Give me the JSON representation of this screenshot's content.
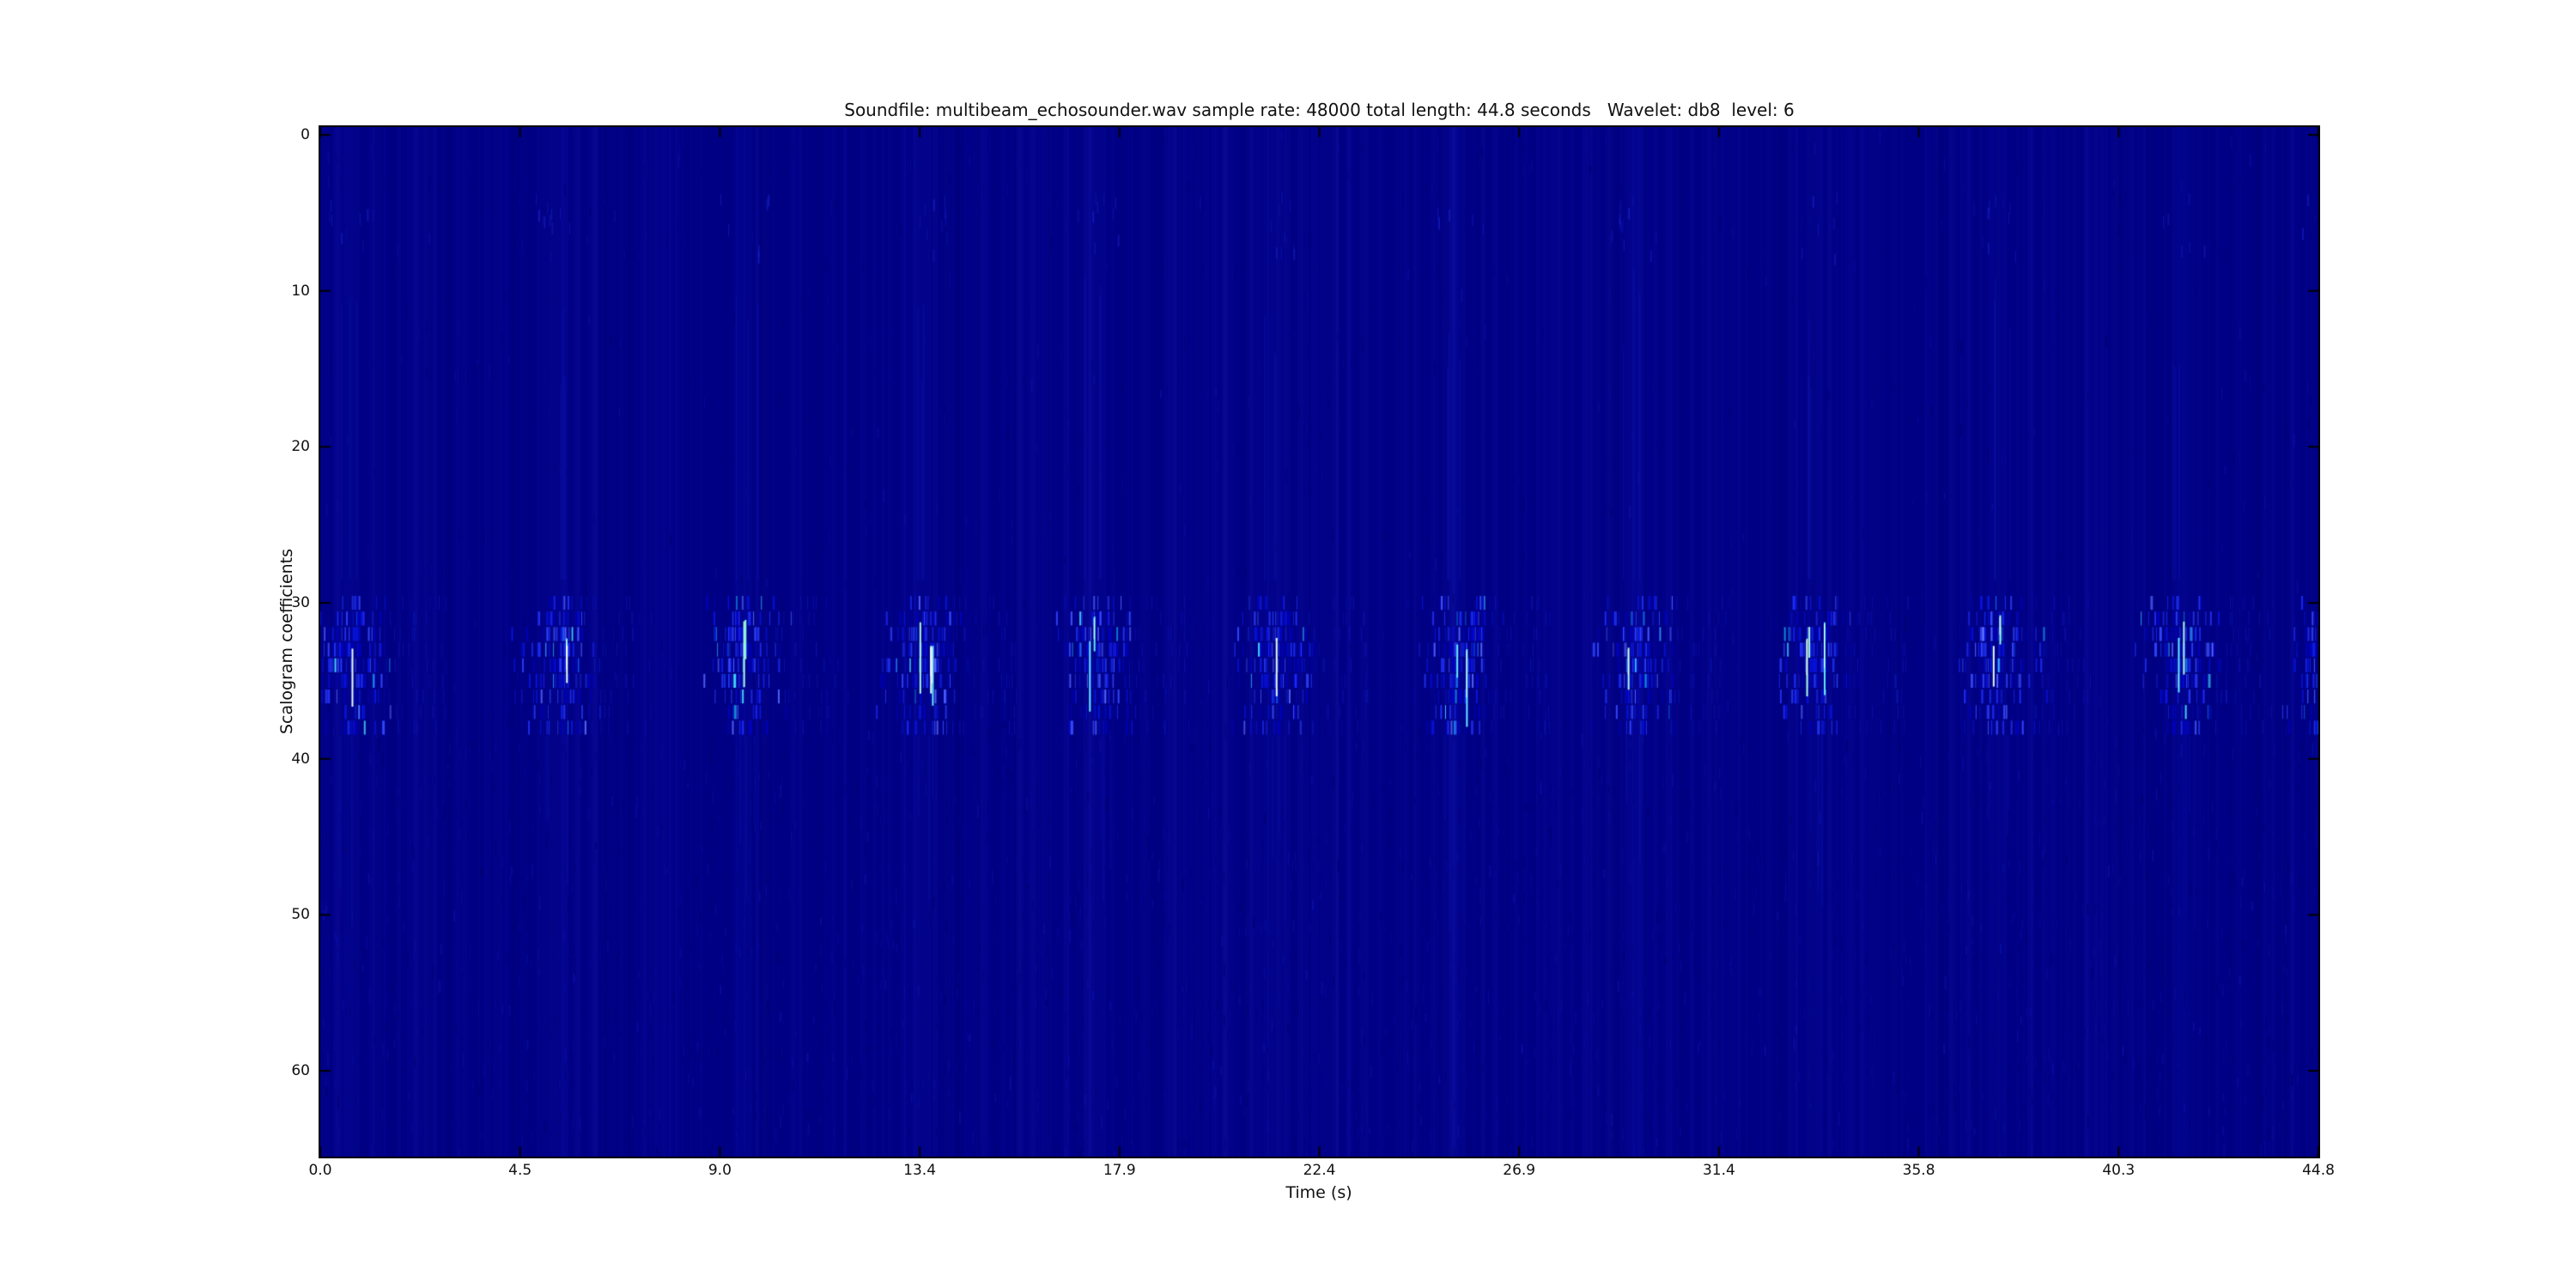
{
  "figure": {
    "title": "Soundfile: multibeam_echosounder.wav sample rate: 48000 total length: 44.8 seconds   Wavelet: db8  level: 6",
    "xlabel": "Time (s)",
    "ylabel": "Scalogram coefficients",
    "background": "#ffffff"
  },
  "chart_data": {
    "type": "heatmap",
    "subtype": "wavelet-scalogram",
    "title": "Soundfile: multibeam_echosounder.wav sample rate: 48000 total length: 44.8 seconds   Wavelet: db8  level: 6",
    "xlabel": "Time (s)",
    "ylabel": "Scalogram coefficients",
    "x_tick_labels": [
      "0.0",
      "4.5",
      "9.0",
      "13.4",
      "17.9",
      "22.4",
      "26.9",
      "31.4",
      "35.8",
      "40.3",
      "44.8"
    ],
    "y_tick_labels": [
      "0",
      "10",
      "20",
      "30",
      "40",
      "50",
      "60"
    ],
    "xlim": [
      0,
      44.8
    ],
    "y_rows": 66,
    "y_axis_inverted": true,
    "grid": false,
    "legend": "none",
    "colorbar": "none",
    "metadata_from_title": {
      "soundfile": "multibeam_echosounder.wav",
      "sample_rate": 48000,
      "total_length_seconds": 44.8,
      "wavelet": "db8",
      "level": 6
    },
    "colors": {
      "axis": "#000000",
      "background_low_value": "#020287",
      "dash_palette": [
        "#0000c4",
        "#0714df",
        "#1f30f5",
        "#3148ff",
        "#5668ff",
        "#0f8fe0",
        "#3fd4ff"
      ],
      "bright_streaks": [
        "#aefadd",
        "#e6fff4",
        "#62e9ff",
        "#8ffce0"
      ],
      "faint_noise_light": "#1212aa",
      "faint_noise_dark": "#000069"
    },
    "ping_events": {
      "count": 12,
      "approx_times_s": [
        0.7,
        5.3,
        9.5,
        13.5,
        17.4,
        21.4,
        25.5,
        29.5,
        33.5,
        37.6,
        41.7,
        45.0
      ],
      "approx_period_s": 4.1,
      "coefficient_band_rows": [
        30,
        38
      ],
      "description": "Each echosounder ping shows as a cluster of thin bright-blue vertical dashes spanning scalogram rows ~30-38 (around y tick 30), with one or two near-white cyan/green peak lines per cluster; the rest of the image is dark navy with faint vertical noise texture, slightly denser in the lower half."
    }
  }
}
